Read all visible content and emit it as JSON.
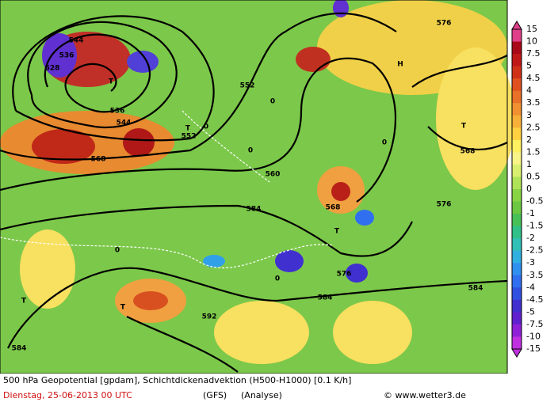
{
  "legend": {
    "labels": [
      "15",
      "10",
      "7.5",
      "5",
      "4.5",
      "4",
      "3.5",
      "3",
      "2.5",
      "2",
      "1.5",
      "1",
      "0.5",
      "0",
      "-0.5",
      "-1",
      "-1.5",
      "-2",
      "-2.5",
      "-3",
      "-3.5",
      "-4",
      "-4.5",
      "-5",
      "-7.5",
      "-10",
      "-15"
    ],
    "colors": [
      "#e0408a",
      "#a80818",
      "#c01818",
      "#d03018",
      "#e05020",
      "#e87028",
      "#f09030",
      "#f8b038",
      "#ffd040",
      "#fff060",
      "#f8f488",
      "#d8f070",
      "#b0e458",
      "#88d444",
      "#6cc840",
      "#48c058",
      "#30c088",
      "#30c0b8",
      "#30b0e0",
      "#3090f0",
      "#3070f0",
      "#3050e0",
      "#4030d0",
      "#6020d0",
      "#9020d8",
      "#c030e0"
    ]
  },
  "map": {
    "contour_labels": [
      "544",
      "536",
      "528",
      "T",
      "536",
      "544",
      "552",
      "T",
      "552",
      "560",
      "568",
      "568",
      "576",
      "576",
      "584",
      "584",
      "584",
      "584",
      "592",
      "T",
      "T",
      "T",
      "H",
      "T",
      "576",
      "568",
      "0",
      "0",
      "0",
      "0",
      "0",
      "0"
    ]
  },
  "footer": {
    "line1": "500 hPa Geopotential [gpdam], Schichtdickenadvektion (H500-H1000) [0.1 K/h]",
    "date": "Dienstag, 25-06-2013  00 UTC",
    "model": "(GFS)",
    "run": "(Analyse)",
    "credit": "© www.wetter3.de"
  }
}
